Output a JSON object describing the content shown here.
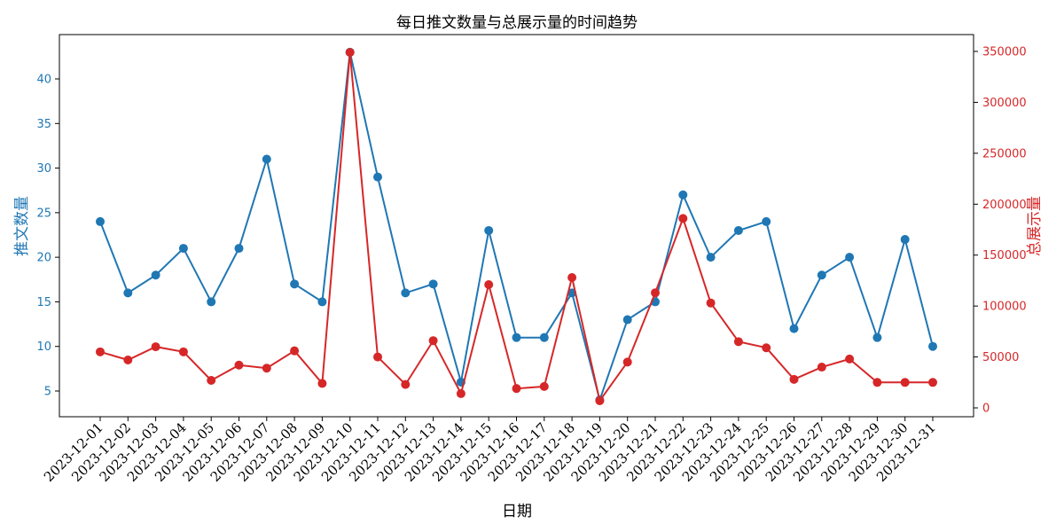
{
  "chart_data": {
    "type": "line",
    "title": "每日推文数量与总展示量的时间趋势",
    "xlabel": "日期",
    "ylabel_left": "推文数量",
    "ylabel_right": "总展示量",
    "categories": [
      "2023-12-01",
      "2023-12-02",
      "2023-12-03",
      "2023-12-04",
      "2023-12-05",
      "2023-12-06",
      "2023-12-07",
      "2023-12-08",
      "2023-12-09",
      "2023-12-10",
      "2023-12-11",
      "2023-12-12",
      "2023-12-13",
      "2023-12-14",
      "2023-12-15",
      "2023-12-16",
      "2023-12-17",
      "2023-12-18",
      "2023-12-19",
      "2023-12-20",
      "2023-12-21",
      "2023-12-22",
      "2023-12-23",
      "2023-12-24",
      "2023-12-25",
      "2023-12-26",
      "2023-12-27",
      "2023-12-28",
      "2023-12-29",
      "2023-12-30",
      "2023-12-31"
    ],
    "series": [
      {
        "name": "推文数量",
        "axis": "left",
        "color": "#1f77b4",
        "values": [
          24,
          16,
          18,
          21,
          15,
          21,
          31,
          17,
          15,
          43,
          29,
          16,
          17,
          6,
          23,
          11,
          11,
          16,
          4,
          13,
          15,
          27,
          20,
          23,
          24,
          12,
          18,
          20,
          11,
          22,
          10
        ]
      },
      {
        "name": "总展示量",
        "axis": "right",
        "color": "#d62728",
        "values": [
          55000,
          47000,
          60000,
          55000,
          27000,
          42000,
          39000,
          56000,
          24000,
          349000,
          50000,
          23000,
          66000,
          14000,
          121000,
          19000,
          21000,
          128000,
          7000,
          45000,
          113000,
          186000,
          103000,
          65000,
          59000,
          28000,
          40000,
          48000,
          25000,
          25000,
          25000
        ]
      }
    ],
    "ylim_left": [
      2.2,
      44.6
    ],
    "yticks_left": [
      5,
      10,
      15,
      20,
      25,
      30,
      35,
      40
    ],
    "ylim_right": [
      -10000,
      366000
    ],
    "yticks_right": [
      0,
      50000,
      100000,
      150000,
      200000,
      250000,
      300000,
      350000
    ],
    "grid": false,
    "legend": null
  }
}
